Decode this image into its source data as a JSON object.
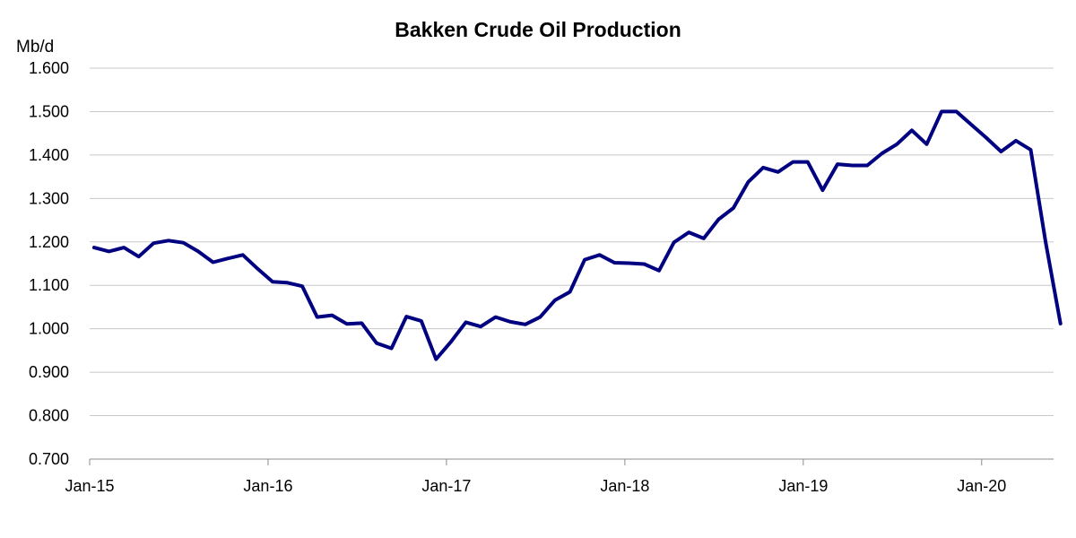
{
  "chart_data": {
    "type": "line",
    "title": "Bakken Crude Oil Production",
    "ylabel": "Mb/d",
    "xlabel": "",
    "ylim": [
      0.7,
      1.6
    ],
    "yticks": [
      "0.700",
      "0.800",
      "0.900",
      "1.000",
      "1.100",
      "1.200",
      "1.300",
      "1.400",
      "1.500",
      "1.600"
    ],
    "ytick_values": [
      0.7,
      0.8,
      0.9,
      1.0,
      1.1,
      1.2,
      1.3,
      1.4,
      1.5,
      1.6
    ],
    "xticks": [
      "Jan-15",
      "Jan-16",
      "Jan-17",
      "Jan-18",
      "Jan-19",
      "Jan-20"
    ],
    "x_start": "Jan-15",
    "x_end": "May-20",
    "grid": true,
    "line_color": "#000080",
    "series": [
      {
        "values": [
          1.187,
          1.178,
          1.187,
          1.166,
          1.197,
          1.203,
          1.198,
          1.178,
          1.153,
          1.162,
          1.17,
          1.138,
          1.108,
          1.106,
          1.098,
          1.027,
          1.031,
          1.011,
          1.013,
          0.967,
          0.955,
          1.028,
          1.018,
          0.93,
          0.97,
          1.015,
          1.005,
          1.027,
          1.016,
          1.01,
          1.027,
          1.066,
          1.085,
          1.159,
          1.17,
          1.152,
          1.151,
          1.149,
          1.134,
          1.199,
          1.222,
          1.208,
          1.252,
          1.278,
          1.338,
          1.371,
          1.361,
          1.384,
          1.384,
          1.319,
          1.379,
          1.376,
          1.376,
          1.404,
          1.425,
          1.457,
          1.425,
          1.5,
          1.5,
          1.47,
          1.44,
          1.408,
          1.433,
          1.412,
          1.2,
          1.012
        ]
      }
    ]
  }
}
